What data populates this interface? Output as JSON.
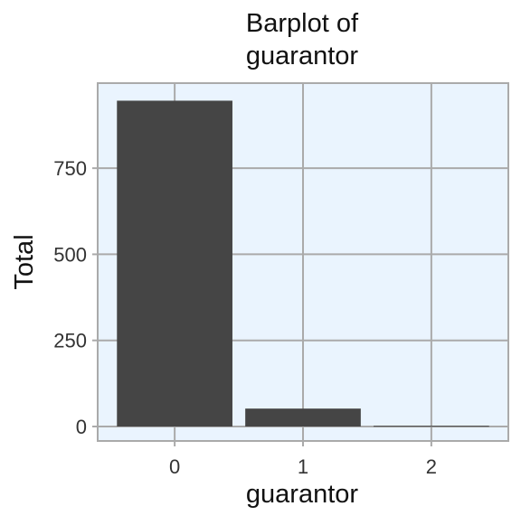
{
  "chart_data": {
    "type": "bar",
    "title_lines": [
      "Barplot of",
      "guarantor"
    ],
    "xlabel": "guarantor",
    "ylabel": "Total",
    "categories": [
      "0",
      "1",
      "2"
    ],
    "values": [
      946,
      52,
      2
    ],
    "ylim": [
      -42,
      997
    ],
    "yticks": [
      0,
      250,
      500,
      750
    ],
    "grid": true,
    "colors": {
      "bar": "#454545",
      "panel_background": "#eaf4fe",
      "grid": "#aaaaaa",
      "panel_border": "#aaaaaa"
    }
  }
}
